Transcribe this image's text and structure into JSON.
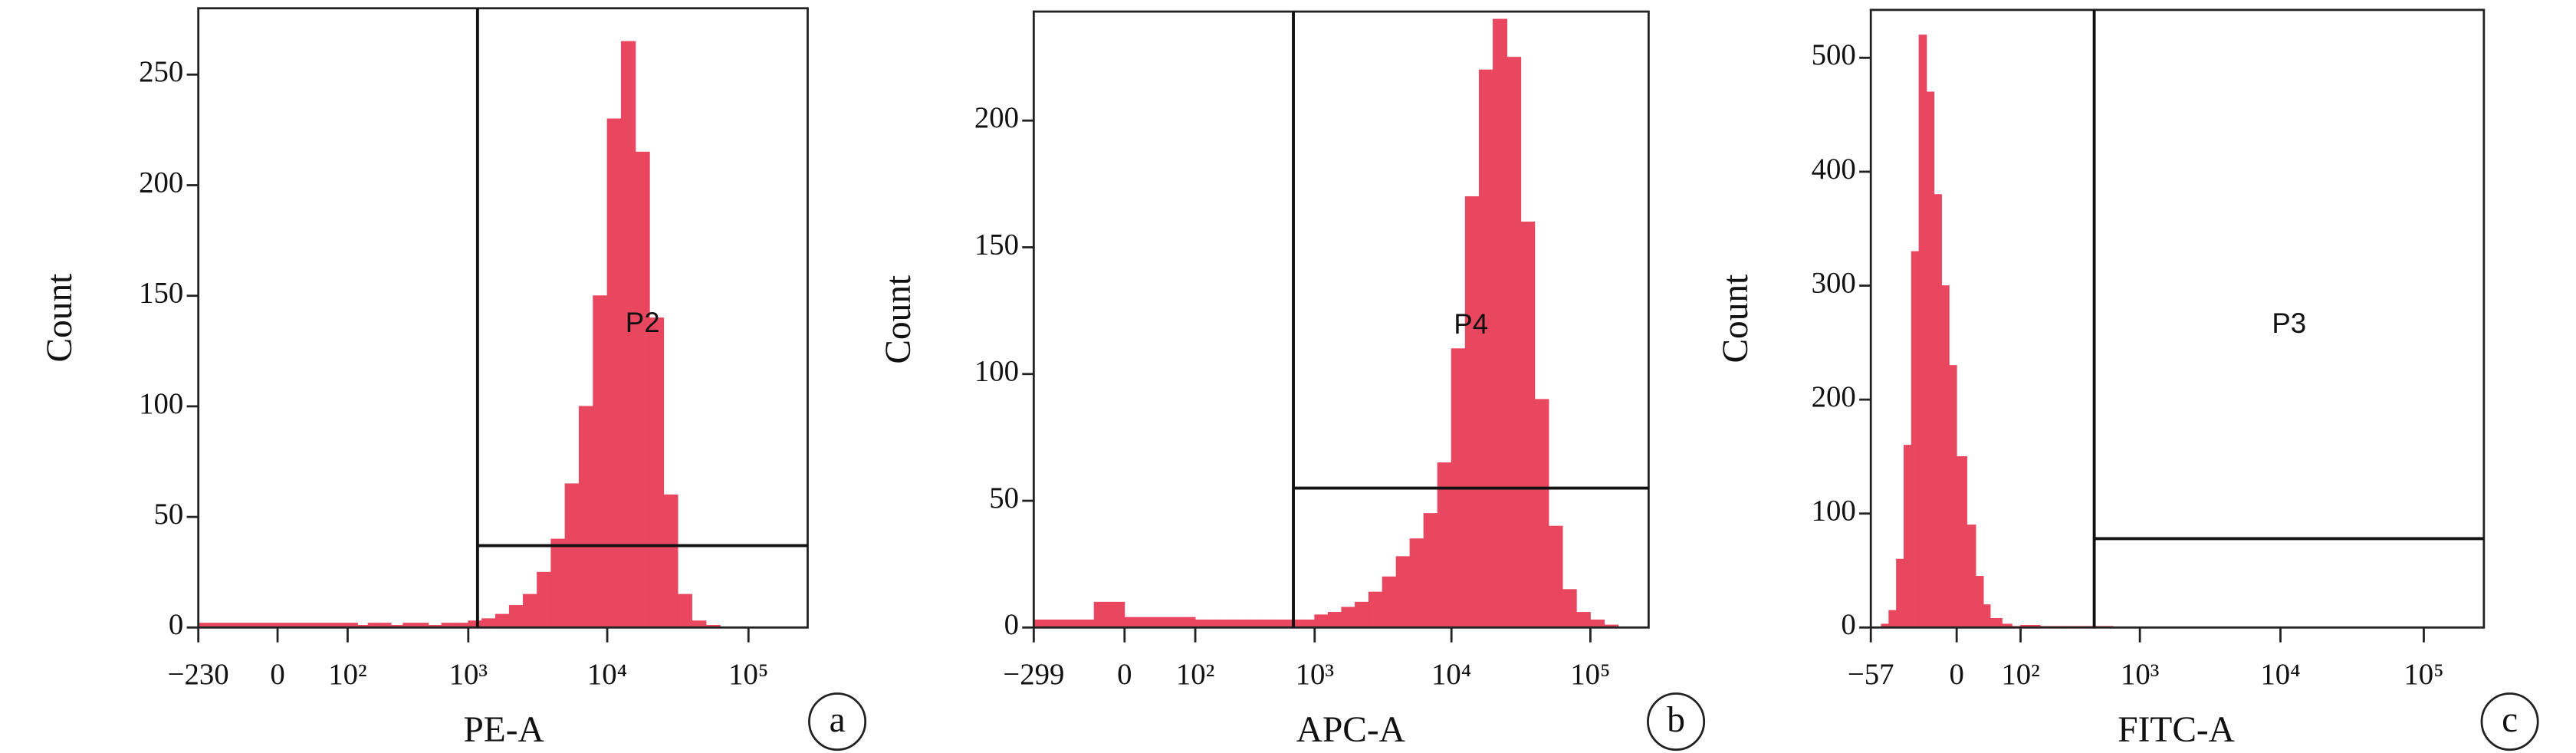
{
  "chart_data": [
    {
      "type": "histogram",
      "xscale": "biexponential",
      "xlabel": "PE-A",
      "ylabel": "Count",
      "panel_label": "a",
      "color": "#e9475f",
      "bins": [
        -230,
        0,
        100,
        126,
        158,
        200,
        251,
        316,
        398,
        501,
        631,
        794,
        1000,
        1259,
        1585,
        1995,
        2512,
        3162,
        3981,
        5012,
        6310,
        7943,
        10000,
        12589,
        15849,
        19953,
        25119,
        31623,
        39811,
        50119,
        63096,
        79433,
        100000
      ],
      "counts": [
        2,
        2,
        2,
        1,
        2,
        2,
        1,
        2,
        2,
        1,
        2,
        2,
        3,
        4,
        6,
        10,
        15,
        25,
        40,
        65,
        100,
        150,
        230,
        265,
        215,
        140,
        60,
        15,
        3,
        1,
        0,
        0
      ],
      "xlim": [
        -230,
        262144
      ],
      "xticks": [
        {
          "value": -230,
          "label": "−230"
        },
        0,
        {
          "value": 100,
          "label": "10²"
        },
        {
          "value": 1000,
          "label": "10³"
        },
        {
          "value": 10000,
          "label": "10⁴"
        },
        {
          "value": 100000,
          "label": "10⁵"
        }
      ],
      "ylim": [
        0,
        280
      ],
      "yticks": [
        0,
        50,
        100,
        150,
        200,
        250
      ],
      "gate": {
        "label": "P2",
        "x": 1170,
        "y": 37
      }
    },
    {
      "type": "histogram",
      "xscale": "biexponential",
      "xlabel": "APC-A",
      "ylabel": "Count",
      "panel_label": "b",
      "color": "#e9475f",
      "bins": [
        -299,
        -100,
        0,
        100,
        126,
        158,
        200,
        251,
        316,
        398,
        501,
        631,
        794,
        1000,
        1259,
        1585,
        1995,
        2512,
        3162,
        3981,
        5012,
        6310,
        7943,
        10000,
        12589,
        15849,
        19953,
        25119,
        31623,
        39811,
        50119,
        63096,
        79433,
        100000,
        125893,
        158489
      ],
      "counts": [
        3,
        10,
        4,
        3,
        3,
        3,
        3,
        3,
        3,
        3,
        3,
        3,
        3,
        5,
        6,
        8,
        10,
        14,
        20,
        28,
        35,
        45,
        65,
        110,
        170,
        220,
        240,
        225,
        160,
        90,
        40,
        15,
        6,
        3,
        1
      ],
      "xlim": [
        -299,
        262144
      ],
      "xticks": [
        {
          "value": -299,
          "label": "−299"
        },
        0,
        {
          "value": 100,
          "label": "10²"
        },
        {
          "value": 1000,
          "label": "10³"
        },
        {
          "value": 10000,
          "label": "10⁴"
        },
        {
          "value": 100000,
          "label": "10⁵"
        }
      ],
      "ylim": [
        0,
        243
      ],
      "yticks": [
        0,
        50,
        100,
        150,
        200
      ],
      "gate": {
        "label": "P4",
        "x": 690,
        "y": 55
      }
    },
    {
      "type": "histogram",
      "xscale": "biexponential",
      "xlabel": "FITC-A",
      "ylabel": "Count",
      "panel_label": "c",
      "color": "#e9475f",
      "bins": [
        -57,
        -50,
        -45,
        -40,
        -35,
        -30,
        -25,
        -20,
        -15,
        -10,
        -5,
        0,
        10,
        20,
        30,
        40,
        60,
        80,
        100,
        158,
        251,
        398,
        631,
        1000,
        1585,
        2512,
        3981,
        6310,
        10000,
        15849,
        25119,
        39811,
        63096,
        100000
      ],
      "counts": [
        0,
        3,
        15,
        60,
        160,
        330,
        520,
        470,
        380,
        300,
        230,
        150,
        90,
        45,
        20,
        8,
        3,
        1,
        2,
        1,
        1,
        1,
        0,
        0,
        0,
        0,
        0,
        0,
        0,
        0,
        0,
        0,
        0
      ],
      "xlim": [
        -57,
        262144
      ],
      "xticks": [
        {
          "value": -57,
          "label": "−57"
        },
        0,
        {
          "value": 100,
          "label": "10²"
        },
        {
          "value": 1000,
          "label": "10³"
        },
        {
          "value": 10000,
          "label": "10⁴"
        },
        {
          "value": 100000,
          "label": "10⁵"
        }
      ],
      "ylim": [
        0,
        542
      ],
      "yticks": [
        0,
        100,
        200,
        300,
        400,
        500
      ],
      "gate": {
        "label": "P3",
        "x": 452,
        "y": 78
      }
    }
  ]
}
